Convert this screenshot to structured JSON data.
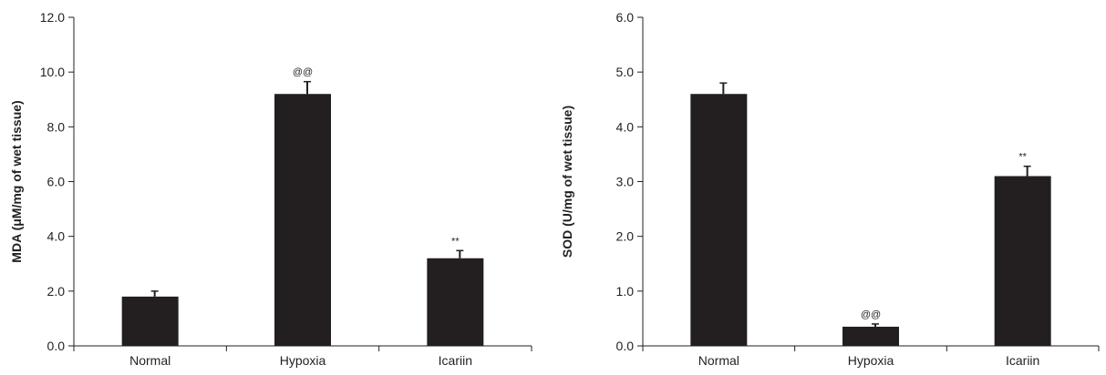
{
  "chart_data": [
    {
      "type": "bar",
      "categories": [
        "Normal",
        "Hypoxia",
        "Icariin"
      ],
      "values": [
        1.8,
        9.2,
        3.2
      ],
      "errors": [
        0.2,
        0.45,
        0.28
      ],
      "annotations": [
        "",
        "@@",
        "**"
      ],
      "ylabel": "MDA (μM/mg of wet tissue)",
      "xlabel": "",
      "ylim": [
        0,
        12
      ],
      "yticks": [
        "0.0",
        "2.0",
        "4.0",
        "6.0",
        "8.0",
        "10.0",
        "12.0"
      ],
      "grid": false,
      "bar_color": "#231f20"
    },
    {
      "type": "bar",
      "categories": [
        "Normal",
        "Hypoxia",
        "Icariin"
      ],
      "values": [
        4.6,
        0.35,
        3.1
      ],
      "errors": [
        0.2,
        0.05,
        0.18
      ],
      "annotations": [
        "",
        "@@",
        "**"
      ],
      "ylabel": "SOD (U/mg of wet tissue)",
      "xlabel": "",
      "ylim": [
        0,
        6
      ],
      "yticks": [
        "0.0",
        "1.0",
        "2.0",
        "3.0",
        "4.0",
        "5.0",
        "6.0"
      ],
      "grid": false,
      "bar_color": "#231f20"
    }
  ]
}
